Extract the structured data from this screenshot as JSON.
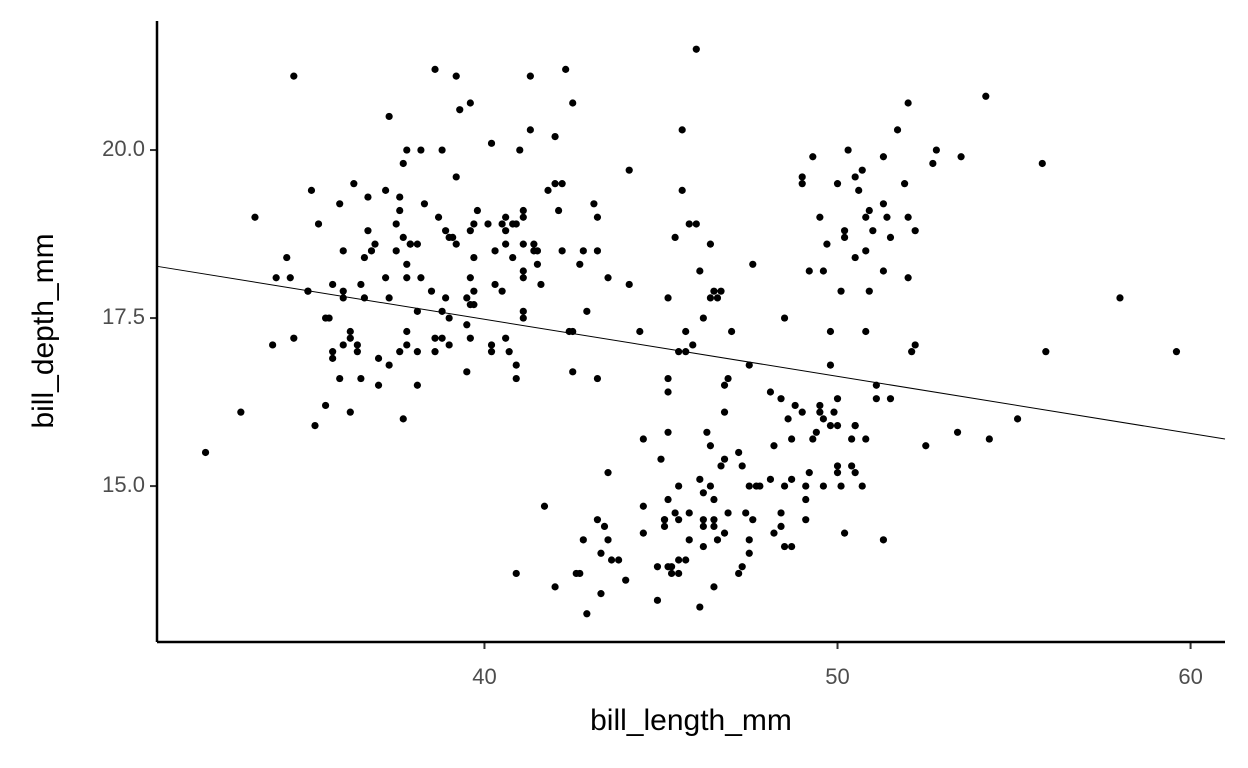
{
  "chart_data": {
    "type": "scatter",
    "x_label": "bill_length_mm",
    "y_label": "bill_depth_mm",
    "color": "#000000",
    "xlim": [
      30.725,
      60.975
    ],
    "ylim": [
      12.68,
      21.92
    ],
    "xticks": [
      40,
      50,
      60
    ],
    "yticks": [
      {
        "value": 15,
        "label": "15.0"
      },
      {
        "value": 17.5,
        "label": "17.5"
      },
      {
        "value": 20,
        "label": "20.0"
      }
    ],
    "grid": false,
    "trend_line": {
      "x": [
        30.725,
        60.975
      ],
      "y": [
        18.27,
        15.7
      ]
    },
    "x": [
      39.1,
      39.5,
      40.3,
      36.7,
      39.3,
      38.9,
      39.2,
      34.1,
      42,
      37.8,
      37.8,
      41.1,
      38.6,
      34.6,
      36.6,
      38.7,
      42.5,
      34.4,
      46,
      37.8,
      37.7,
      35.9,
      38.2,
      38.8,
      35.3,
      40.6,
      40.5,
      37.9,
      40.5,
      39.5,
      37.2,
      39.5,
      40.9,
      36.4,
      39.2,
      38.8,
      42.2,
      37.6,
      39.8,
      36.5,
      40.8,
      36,
      44.1,
      37,
      39.6,
      41.1,
      37.5,
      36,
      42.3,
      39.6,
      40.1,
      35,
      42,
      34.5,
      41.4,
      39,
      40.6,
      36.5,
      37.6,
      35.7,
      41.3,
      37.6,
      41.1,
      36.4,
      41.6,
      35.5,
      41.1,
      35.9,
      41.8,
      33.5,
      39.7,
      39.6,
      45.8,
      35.5,
      42.8,
      40.9,
      37.2,
      36.2,
      42.1,
      34.6,
      42.9,
      36.7,
      35.1,
      37.3,
      41.3,
      36.3,
      36.9,
      38.3,
      38.9,
      35.7,
      41.1,
      34,
      39.6,
      36.2,
      40.8,
      38.1,
      40.3,
      33.1,
      43.2,
      35,
      41,
      37.7,
      37.8,
      37.9,
      39.7,
      38.6,
      38.2,
      38.1,
      43.2,
      38.1,
      45.6,
      39.7,
      42.2,
      39.6,
      42.7,
      38.6,
      37.3,
      35.7,
      41.1,
      36.2,
      37.7,
      40.2,
      41.4,
      35.2,
      40.6,
      38.8,
      41.5,
      39,
      44.1,
      38.5,
      43.1,
      36.8,
      37.5,
      38.1,
      41.1,
      35.6,
      40.2,
      37,
      39.7,
      40.2,
      40.6,
      32.1,
      40.7,
      37.3,
      39,
      39.2,
      36.6,
      36,
      37.8,
      36,
      41.5,
      46.1,
      50,
      48.7,
      50,
      47.6,
      46.5,
      45.4,
      46.7,
      43.3,
      46.8,
      40.9,
      49,
      45.5,
      48.4,
      45.8,
      49.3,
      42,
      49.2,
      46.2,
      48.7,
      50.2,
      45.1,
      46.5,
      46.3,
      42.9,
      46.1,
      44.5,
      47.8,
      48.2,
      50,
      47.3,
      42.8,
      45.1,
      59.6,
      49.1,
      48.4,
      42.6,
      44.4,
      44,
      48.7,
      42.7,
      49.6,
      45.3,
      49.6,
      50.5,
      43.6,
      45.5,
      50.5,
      44.9,
      45.2,
      46.6,
      48.5,
      45.1,
      50.1,
      46.5,
      45,
      43.8,
      45.5,
      43.2,
      50.4,
      45.3,
      46.2,
      45.7,
      54.3,
      45.8,
      49.8,
      46.2,
      49.5,
      43.5,
      50.7,
      47.7,
      46.4,
      48.2,
      46.5,
      46.4,
      48.6,
      47.5,
      51.1,
      45.2,
      45.2,
      49.1,
      52.5,
      47.4,
      50,
      44.9,
      50.8,
      43.4,
      51.3,
      47.5,
      52.1,
      47.5,
      52.2,
      45.5,
      49.5,
      44.5,
      50.8,
      49.4,
      46.9,
      48.4,
      51.1,
      48.5,
      55.9,
      47.2,
      49.1,
      47.3,
      46.8,
      41.7,
      53.4,
      43.3,
      48.1,
      50.5,
      49.8,
      43.5,
      51.5,
      46.2,
      55.1,
      44.5,
      48.8,
      47.2,
      46.8,
      50.4,
      45.2,
      49.9,
      46.5,
      50,
      51.3,
      45.4,
      52.7,
      45.2,
      46.1,
      51.3,
      46,
      51.3,
      46.6,
      51.7,
      47,
      52,
      45.9,
      50.5,
      50.3,
      58,
      46.4,
      49.2,
      42.4,
      48.5,
      43.2,
      50.6,
      46.7,
      52,
      50.5,
      49.5,
      46.4,
      52.8,
      40.9,
      54.2,
      42.5,
      51,
      49.7,
      47.5,
      47.6,
      52,
      46.9,
      53.5,
      49,
      46.2,
      50.9,
      45.5,
      50.9,
      50.8,
      50.1,
      49,
      51.5,
      49.8,
      48.1,
      51.4,
      45.7,
      50.7,
      42.5,
      52.2,
      45.2,
      49.3,
      50.2,
      45.6,
      51.9,
      46.8,
      45.7,
      55.8,
      43.5,
      49.6,
      50.8,
      50.2
    ],
    "values": [
      18.7,
      17.4,
      18,
      19.3,
      20.6,
      17.8,
      19.6,
      18.1,
      20.2,
      17.1,
      17.3,
      17.6,
      21.2,
      21.1,
      17.8,
      19,
      20.7,
      18.4,
      21.5,
      18.3,
      18.7,
      19.2,
      18.1,
      17.2,
      18.9,
      18.6,
      17.9,
      18.6,
      18.9,
      16.7,
      18.1,
      17.8,
      18.9,
      17,
      21.1,
      20,
      18.5,
      19.3,
      19.1,
      18,
      18.4,
      18.5,
      19.7,
      16.9,
      18.8,
      19,
      18.9,
      17.9,
      21.2,
      17.7,
      18.9,
      17.9,
      19.5,
      18.1,
      18.6,
      17.5,
      18.8,
      16.6,
      19.1,
      16.9,
      21.1,
      17,
      18.2,
      17.1,
      18,
      16.2,
      19.1,
      16.6,
      19.4,
      19,
      18.4,
      17.2,
      18.9,
      17.5,
      18.5,
      16.8,
      19.4,
      16.1,
      19.1,
      17.2,
      17.6,
      18.8,
      19.4,
      17.8,
      20.3,
      19.5,
      18.6,
      19.2,
      18.8,
      18,
      18.1,
      17.1,
      18.1,
      17.3,
      18.9,
      18.6,
      18.5,
      16.1,
      18.5,
      17.9,
      20,
      16,
      20,
      18.6,
      18.9,
      17.2,
      20,
      17,
      19,
      16.5,
      20.3,
      17.7,
      19.5,
      20.7,
      18.3,
      17,
      20.5,
      17,
      18.6,
      17.2,
      19.8,
      17,
      18.5,
      15.9,
      19,
      17.6,
      18.3,
      17.1,
      18,
      17.9,
      19.2,
      18.5,
      18.5,
      17.6,
      17.5,
      17.5,
      20.1,
      16.5,
      17.9,
      17.1,
      17.2,
      15.5,
      17,
      16.8,
      18.7,
      18.6,
      18.4,
      17.8,
      18.1,
      17.1,
      18.5,
      13.2,
      16.3,
      14.1,
      15.2,
      14.5,
      13.5,
      14.6,
      15.3,
      13.4,
      15.4,
      13.7,
      16.1,
      13.7,
      14.6,
      14.6,
      15.7,
      13.5,
      15.2,
      14.5,
      15.1,
      14.3,
      14.5,
      14.5,
      15.8,
      13.1,
      15.1,
      14.3,
      15,
      14.3,
      15.3,
      15.3,
      14.2,
      14.5,
      17,
      14.8,
      16.3,
      13.7,
      17.3,
      13.6,
      15.7,
      13.7,
      16,
      13.7,
      15,
      15.9,
      13.9,
      13.9,
      15.9,
      13.3,
      15.8,
      14.2,
      14.1,
      14.4,
      15,
      14.4,
      15.4,
      13.9,
      15,
      14.5,
      15.3,
      13.8,
      14.9,
      13.9,
      15.7,
      14.2,
      16.8,
      14.4,
      16.2,
      14.2,
      15,
      15,
      15.6,
      15.6,
      14.8,
      15,
      16,
      14.2,
      16.3,
      13.8,
      16.4,
      14.5,
      15.6,
      14.6,
      15.9,
      13.8,
      17.3,
      14.4,
      14.2,
      14,
      17,
      15,
      17.1,
      14.5,
      16.1,
      14.7,
      15.7,
      15.8,
      14.6,
      14.4,
      16.5,
      15,
      17,
      15.5,
      15,
      13.8,
      16.1,
      14.7,
      15.8,
      14,
      15.1,
      15.2,
      15.9,
      15.2,
      16.3,
      14.1,
      16,
      15.7,
      16.2,
      13.7,
      14.3,
      15.7,
      14.8,
      16.1,
      17.9,
      19.5,
      19.2,
      18.7,
      19.8,
      17.8,
      18.2,
      18.2,
      18.9,
      19.9,
      17.8,
      20.3,
      17.3,
      18.1,
      17.1,
      19.6,
      20,
      17.8,
      18.6,
      18.2,
      17.3,
      17.5,
      16.6,
      19.4,
      17.9,
      19,
      18.4,
      19,
      17.8,
      20,
      16.6,
      20.8,
      16.7,
      18.8,
      18.6,
      16.8,
      18.3,
      20.7,
      16.6,
      19.9,
      19.5,
      17.5,
      19.1,
      17,
      17.9,
      18.5,
      17.9,
      19.6,
      18.7,
      17.3,
      16.4,
      19,
      17.3,
      19.7,
      17.3,
      18.8,
      16.6,
      19.9,
      18.8,
      19.4,
      19.5,
      16.5,
      17,
      19.8,
      18.1,
      18.2,
      19,
      18.7
    ]
  }
}
